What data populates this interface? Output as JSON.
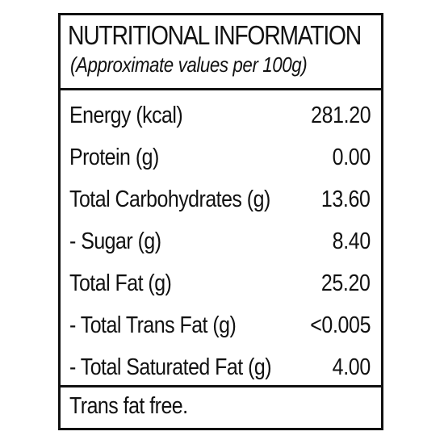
{
  "label": {
    "title": "NUTRITIONAL INFORMATION",
    "subtitle": "(Approximate values per 100g)",
    "rows": [
      {
        "name": "Energy (kcal)",
        "value": "281.20"
      },
      {
        "name": "Protein (g)",
        "value": "0.00"
      },
      {
        "name": "Total Carbohydrates (g)",
        "value": "13.60"
      },
      {
        "name": "- Sugar (g)",
        "value": "8.40"
      },
      {
        "name": "Total Fat (g)",
        "value": "25.20"
      },
      {
        "name": "- Total Trans Fat (g)",
        "value": "<0.005"
      },
      {
        "name": "- Total Saturated Fat (g)",
        "value": "4.00"
      }
    ],
    "footer": "Trans fat free."
  }
}
